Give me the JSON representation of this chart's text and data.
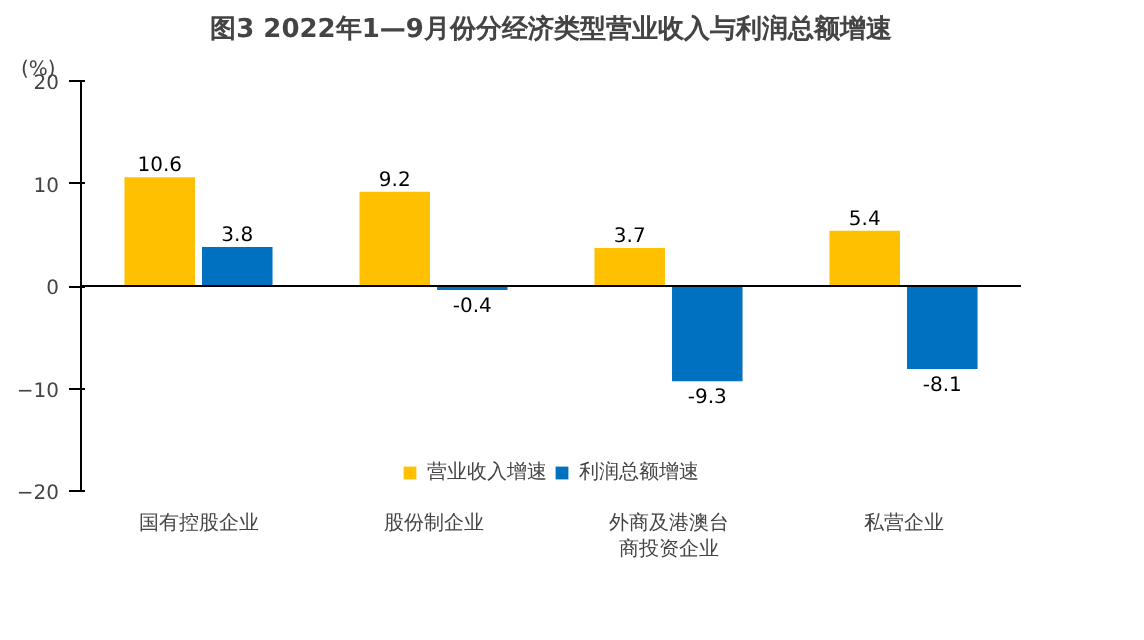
{
  "chart_data": {
    "type": "bar",
    "title": "图3 2022年1—9月份分经济类型营业收入与利润总额增速",
    "ylabel": "(%)",
    "categories": [
      "国有控股企业",
      "股份制企业",
      "外商及港澳台商投资企业",
      "私营企业"
    ],
    "series": [
      {
        "name": "营业收入增速",
        "color": "#ffc000",
        "values": [
          10.6,
          9.2,
          3.7,
          5.4
        ]
      },
      {
        "name": "利润总额增速",
        "color": "#0070c0",
        "values": [
          3.8,
          -0.4,
          -9.3,
          -8.1
        ]
      }
    ],
    "ylim": [
      -20,
      20
    ],
    "yticks": [
      -20,
      -10,
      0,
      10,
      20
    ],
    "grid": false,
    "legend": "bottom",
    "data_labels": true,
    "ref_lines": [
      {
        "axis": "y",
        "value": 0,
        "color": "#000000"
      }
    ]
  }
}
